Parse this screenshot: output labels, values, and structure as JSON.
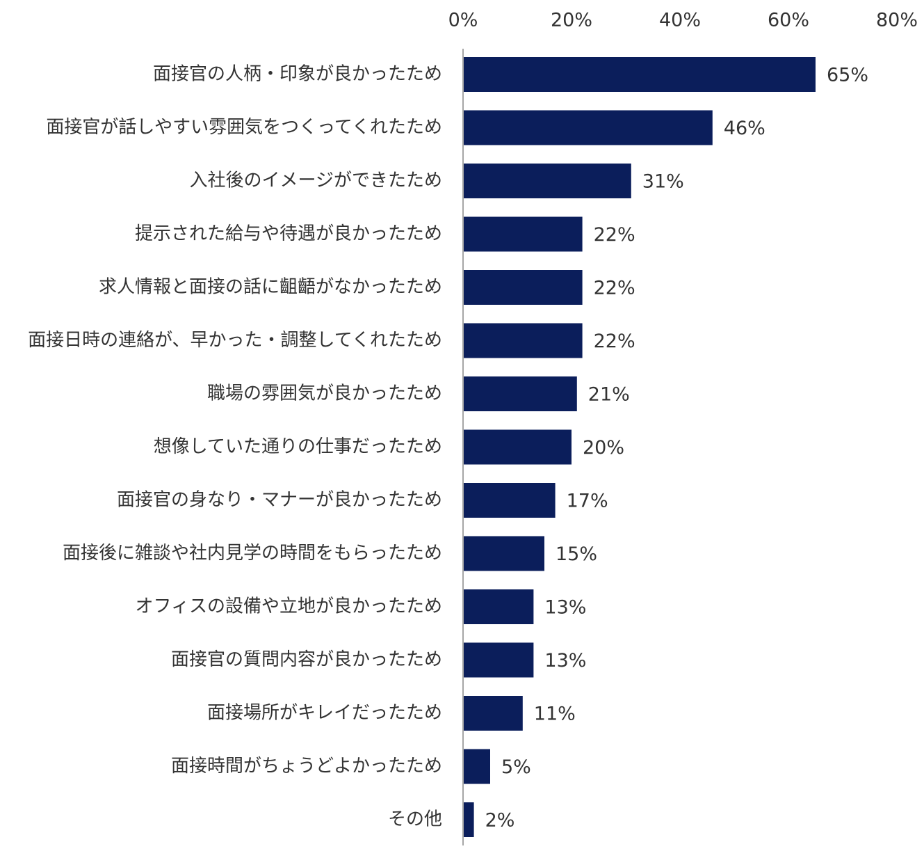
{
  "chart_data": {
    "type": "bar",
    "orientation": "horizontal",
    "categories": [
      "面接官の人柄・印象が良かったため",
      "面接官が話しやすい雰囲気をつくってくれたため",
      "入社後のイメージができたため",
      "提示された給与や待遇が良かったため",
      "求人情報と面接の話に齟齬がなかったため",
      "面接日時の連絡が、早かった・調整してくれたため",
      "職場の雰囲気が良かったため",
      "想像していた通りの仕事だったため",
      "面接官の身なり・マナーが良かったため",
      "面接後に雑談や社内見学の時間をもらったため",
      "オフィスの設備や立地が良かったため",
      "面接官の質問内容が良かったため",
      "面接場所がキレイだったため",
      "面接時間がちょうどよかったため",
      "その他"
    ],
    "values": [
      65,
      46,
      31,
      22,
      22,
      22,
      21,
      20,
      17,
      15,
      13,
      13,
      11,
      5,
      2
    ],
    "value_labels": [
      "65%",
      "46%",
      "31%",
      "22%",
      "22%",
      "22%",
      "21%",
      "20%",
      "17%",
      "15%",
      "13%",
      "13%",
      "11%",
      "5%",
      "2%"
    ],
    "ticks": [
      {
        "value": 0,
        "label": "0%"
      },
      {
        "value": 20,
        "label": "20%"
      },
      {
        "value": 40,
        "label": "40%"
      },
      {
        "value": 60,
        "label": "60%"
      },
      {
        "value": 80,
        "label": "80%"
      }
    ],
    "xlim": [
      0,
      80
    ],
    "axis_position": "top",
    "grid": false,
    "legend": "none",
    "colors": {
      "bar": "#0b1e5b",
      "axis": "#a6a6a6",
      "text": "#333333"
    }
  }
}
